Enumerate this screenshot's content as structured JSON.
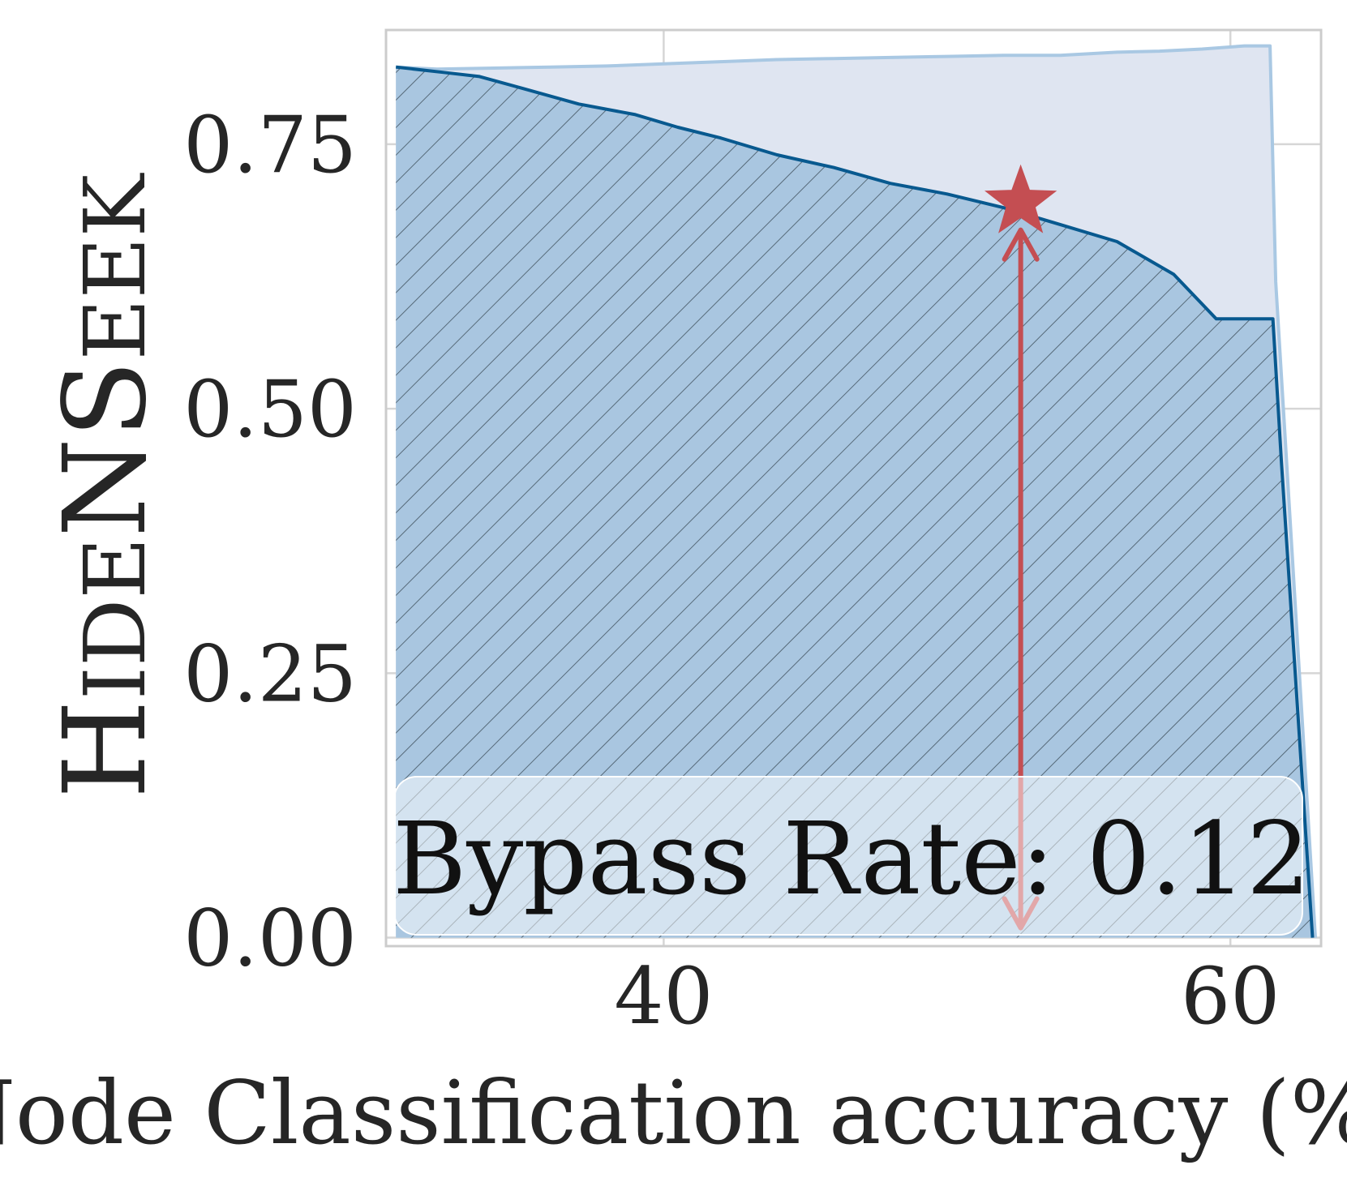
{
  "chart_data": {
    "type": "area",
    "xlabel": "Node Classification accuracy (%)",
    "ylabel": "HideNSeek",
    "ylabel_parts": [
      {
        "text": "H",
        "small": false
      },
      {
        "text": "IDE",
        "small": true
      },
      {
        "text": "N",
        "small": false
      },
      {
        "text": "S",
        "small": false
      },
      {
        "text": "EEK",
        "small": true
      }
    ],
    "xlim": [
      30.2,
      63.2
    ],
    "ylim": [
      -0.008,
      0.858
    ],
    "x_ticks": [
      40,
      60
    ],
    "x_tick_labels": [
      "40",
      "60"
    ],
    "y_ticks": [
      0.0,
      0.25,
      0.5,
      0.75
    ],
    "y_tick_labels": [
      "0.00",
      "0.25",
      "0.50",
      "0.75"
    ],
    "grid": true,
    "series": [
      {
        "role": "upper",
        "color": "#a9c8e3",
        "fill": "#dfe5f1",
        "x": [
          30.55,
          32,
          34,
          36,
          38,
          40,
          42,
          44,
          46,
          48,
          50,
          52,
          54,
          56,
          57.5,
          59,
          60.5,
          61.4,
          61.6,
          63.0
        ],
        "y": [
          0.823,
          0.821,
          0.822,
          0.823,
          0.824,
          0.826,
          0.828,
          0.83,
          0.831,
          0.832,
          0.833,
          0.834,
          0.834,
          0.837,
          0.838,
          0.84,
          0.843,
          0.843,
          0.62,
          0.0
        ]
      },
      {
        "role": "lower",
        "color": "#08598f",
        "fill": "#a9c6e0",
        "hatch": true,
        "x": [
          30.55,
          32.2,
          33.5,
          35,
          37,
          39,
          40.5,
          42,
          44,
          46,
          48,
          50,
          52,
          54,
          56,
          58,
          59.5,
          61.5,
          61.8,
          62.9
        ],
        "y": [
          0.823,
          0.818,
          0.814,
          0.803,
          0.788,
          0.778,
          0.766,
          0.756,
          0.74,
          0.728,
          0.713,
          0.703,
          0.69,
          0.674,
          0.658,
          0.627,
          0.585,
          0.585,
          0.45,
          0.0
        ]
      }
    ],
    "marker": {
      "shape": "star",
      "color": "#c44e52",
      "x": 52.6,
      "y": 0.695
    },
    "arrow": {
      "color": "#c44e52",
      "x": 52.6,
      "y_from": 0.0,
      "y_to": 0.695
    },
    "annotation": {
      "text": "Bypass Rate: 0.12",
      "box_fill": "#ffffff",
      "box_opacity": 0.5
    }
  }
}
